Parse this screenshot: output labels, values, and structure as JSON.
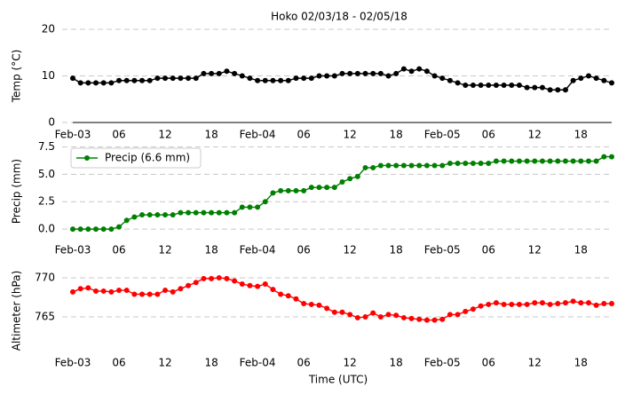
{
  "chart_data": [
    {
      "type": "line",
      "title": "Hoko 02/03/18 - 02/05/18",
      "y_label": "Temp (°C)",
      "color": "#000000",
      "x": [
        0,
        1,
        2,
        3,
        4,
        5,
        6,
        7,
        8,
        9,
        10,
        11,
        12,
        13,
        14,
        15,
        16,
        17,
        18,
        19,
        20,
        21,
        22,
        23,
        24,
        25,
        26,
        27,
        28,
        29,
        30,
        31,
        32,
        33,
        34,
        35,
        36,
        37,
        38,
        39,
        40,
        41,
        42,
        43,
        44,
        45,
        46,
        47,
        48,
        49,
        50,
        51,
        52,
        53,
        54,
        55,
        56,
        57,
        58,
        59,
        60,
        61,
        62,
        63,
        64,
        65,
        66,
        67,
        68,
        69,
        70
      ],
      "values": [
        9.5,
        8.5,
        8.5,
        8.5,
        8.5,
        8.5,
        9,
        9,
        9,
        9,
        9,
        9.5,
        9.5,
        9.5,
        9.5,
        9.5,
        9.5,
        10.5,
        10.5,
        10.5,
        11,
        10.5,
        10,
        9.5,
        9,
        9,
        9,
        9,
        9,
        9.5,
        9.5,
        9.5,
        10,
        10,
        10,
        10.5,
        10.5,
        10.5,
        10.5,
        10.5,
        10.5,
        10,
        10.5,
        11.5,
        11,
        11.5,
        11,
        10,
        9.5,
        9,
        8.5,
        8,
        8,
        8,
        8,
        8,
        8,
        8,
        8,
        7.5,
        7.5,
        7.5,
        7,
        7,
        7,
        9,
        9.5,
        10,
        9.5,
        9,
        8.5
      ],
      "xlim": [
        0,
        70
      ],
      "xticks": [
        {
          "value": 0,
          "label": "Feb-03"
        },
        {
          "value": 6,
          "label": "06"
        },
        {
          "value": 12,
          "label": "12"
        },
        {
          "value": 18,
          "label": "18"
        },
        {
          "value": 24,
          "label": "Feb-04"
        },
        {
          "value": 30,
          "label": "06"
        },
        {
          "value": 36,
          "label": "12"
        },
        {
          "value": 42,
          "label": "18"
        },
        {
          "value": 48,
          "label": "Feb-05"
        },
        {
          "value": 54,
          "label": "06"
        },
        {
          "value": 60,
          "label": "12"
        },
        {
          "value": 66,
          "label": "18"
        }
      ],
      "ylim": [
        0,
        20
      ],
      "yticks": [
        0,
        10,
        20
      ],
      "grid": true
    },
    {
      "type": "line",
      "y_label": "Precip (mm)",
      "legend": "upper left",
      "x": [
        0,
        1,
        2,
        3,
        4,
        5,
        6,
        7,
        8,
        9,
        10,
        11,
        12,
        13,
        14,
        15,
        16,
        17,
        18,
        19,
        20,
        21,
        22,
        23,
        24,
        25,
        26,
        27,
        28,
        29,
        30,
        31,
        32,
        33,
        34,
        35,
        36,
        37,
        38,
        39,
        40,
        41,
        42,
        43,
        44,
        45,
        46,
        47,
        48,
        49,
        50,
        51,
        52,
        53,
        54,
        55,
        56,
        57,
        58,
        59,
        60,
        61,
        62,
        63,
        64,
        65,
        66,
        67,
        68,
        69,
        70
      ],
      "series": [
        {
          "name": "Precip (6.6 mm)",
          "color": "#008000",
          "values": [
            0,
            0,
            0,
            0,
            0,
            0,
            0.2,
            0.8,
            1.1,
            1.3,
            1.3,
            1.3,
            1.3,
            1.3,
            1.5,
            1.5,
            1.5,
            1.5,
            1.5,
            1.5,
            1.5,
            1.5,
            2.0,
            2.0,
            2.0,
            2.5,
            3.3,
            3.5,
            3.5,
            3.5,
            3.5,
            3.8,
            3.8,
            3.8,
            3.8,
            4.3,
            4.6,
            4.8,
            5.6,
            5.6,
            5.8,
            5.8,
            5.8,
            5.8,
            5.8,
            5.8,
            5.8,
            5.8,
            5.8,
            6.0,
            6.0,
            6.0,
            6.0,
            6.0,
            6.0,
            6.2,
            6.2,
            6.2,
            6.2,
            6.2,
            6.2,
            6.2,
            6.2,
            6.2,
            6.2,
            6.2,
            6.2,
            6.2,
            6.2,
            6.6,
            6.6
          ]
        }
      ],
      "xlim": [
        0,
        70
      ],
      "xticks": [
        {
          "value": 0,
          "label": "Feb-03"
        },
        {
          "value": 6,
          "label": "06"
        },
        {
          "value": 12,
          "label": "12"
        },
        {
          "value": 18,
          "label": "18"
        },
        {
          "value": 24,
          "label": "Feb-04"
        },
        {
          "value": 30,
          "label": "06"
        },
        {
          "value": 36,
          "label": "12"
        },
        {
          "value": 42,
          "label": "18"
        },
        {
          "value": 48,
          "label": "Feb-05"
        },
        {
          "value": 54,
          "label": "06"
        },
        {
          "value": 60,
          "label": "12"
        },
        {
          "value": 66,
          "label": "18"
        }
      ],
      "ylim": [
        -0.8,
        7.7
      ],
      "yticks": [
        {
          "value": 0,
          "label": "0.0"
        },
        2.5,
        {
          "value": 5,
          "label": "5.0"
        },
        7.5
      ],
      "grid": true
    },
    {
      "type": "line",
      "y_label": "Altimeter (hPa)",
      "x_label": "Time (UTC)",
      "color": "#ff0000",
      "x": [
        0,
        1,
        2,
        3,
        4,
        5,
        6,
        7,
        8,
        9,
        10,
        11,
        12,
        13,
        14,
        15,
        16,
        17,
        18,
        19,
        20,
        21,
        22,
        23,
        24,
        25,
        26,
        27,
        28,
        29,
        30,
        31,
        32,
        33,
        34,
        35,
        36,
        37,
        38,
        39,
        40,
        41,
        42,
        43,
        44,
        45,
        46,
        47,
        48,
        49,
        50,
        51,
        52,
        53,
        54,
        55,
        56,
        57,
        58,
        59,
        60,
        61,
        62,
        63,
        64,
        65,
        66,
        67,
        68,
        69,
        70
      ],
      "values": [
        768.2,
        768.6,
        768.7,
        768.3,
        768.3,
        768.2,
        768.4,
        768.4,
        767.9,
        767.9,
        767.9,
        767.9,
        768.4,
        768.2,
        768.6,
        769.0,
        769.4,
        769.9,
        769.9,
        770.0,
        769.9,
        769.6,
        769.2,
        769.0,
        768.9,
        769.2,
        768.5,
        767.9,
        767.7,
        767.3,
        766.7,
        766.6,
        766.5,
        766.1,
        765.6,
        765.6,
        765.3,
        764.9,
        765.0,
        765.5,
        765.0,
        765.3,
        765.2,
        764.9,
        764.8,
        764.7,
        764.6,
        764.6,
        764.7,
        765.3,
        765.3,
        765.7,
        766.0,
        766.4,
        766.6,
        766.8,
        766.6,
        766.6,
        766.6,
        766.6,
        766.8,
        766.8,
        766.6,
        766.7,
        766.8,
        767.0,
        766.8,
        766.8,
        766.5,
        766.7,
        766.7
      ],
      "xlim": [
        0,
        70
      ],
      "xticks": [
        {
          "value": 0,
          "label": "Feb-03"
        },
        {
          "value": 6,
          "label": "06"
        },
        {
          "value": 12,
          "label": "12"
        },
        {
          "value": 18,
          "label": "18"
        },
        {
          "value": 24,
          "label": "Feb-04"
        },
        {
          "value": 30,
          "label": "06"
        },
        {
          "value": 36,
          "label": "12"
        },
        {
          "value": 42,
          "label": "18"
        },
        {
          "value": 48,
          "label": "Feb-05"
        },
        {
          "value": 54,
          "label": "06"
        },
        {
          "value": 60,
          "label": "12"
        },
        {
          "value": 66,
          "label": "18"
        }
      ],
      "ylim": [
        760.7,
        770.9
      ],
      "yticks": [
        765,
        770
      ],
      "grid": true
    }
  ]
}
